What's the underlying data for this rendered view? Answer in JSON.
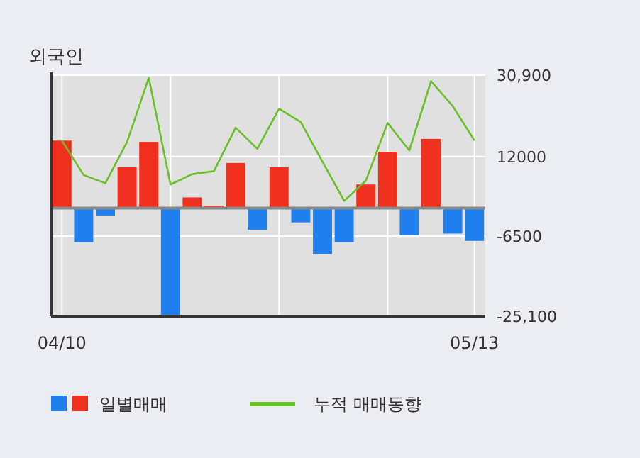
{
  "chart_data": {
    "type": "bar",
    "title": "외국인",
    "categories": [
      "04/10",
      null,
      null,
      null,
      null,
      null,
      null,
      null,
      null,
      null,
      null,
      null,
      null,
      null,
      null,
      null,
      null,
      null,
      null,
      "05/13"
    ],
    "series": [
      {
        "name": "일별매매",
        "colors": [
          "#f0301e",
          "#2080f0",
          "#2080f0",
          "#f0301e",
          "#f0301e",
          "#2080f0",
          "#f0301e",
          "#f0301e",
          "#f0301e",
          "#2080f0",
          "#f0301e",
          "#2080f0",
          "#2080f0",
          "#2080f0",
          "#f0301e",
          "#f0301e",
          "#2080f0",
          "#f0301e",
          "#2080f0",
          "#2080f0"
        ],
        "values": [
          15700,
          -7900,
          -1700,
          9500,
          15400,
          -24900,
          2500,
          600,
          10500,
          -5000,
          9500,
          -3300,
          -10600,
          -7900,
          5500,
          13100,
          -6300,
          16100,
          -5900,
          -7600
        ]
      },
      {
        "name": "누적 매매동향",
        "type": "line",
        "color": "#6abf2a",
        "values": [
          15700,
          7700,
          5800,
          15400,
          30300,
          5500,
          7900,
          8600,
          18700,
          13800,
          23100,
          20000,
          10800,
          1700,
          6400,
          19800,
          13400,
          29500,
          23700,
          15700
        ]
      }
    ],
    "ylim": [
      -25100,
      30900
    ],
    "yticks": [
      {
        "value": 30900,
        "label": "30,900"
      },
      12000,
      -6500,
      {
        "value": -25100,
        "label": "-25,100"
      }
    ],
    "grid": true,
    "legend": "bottom"
  }
}
